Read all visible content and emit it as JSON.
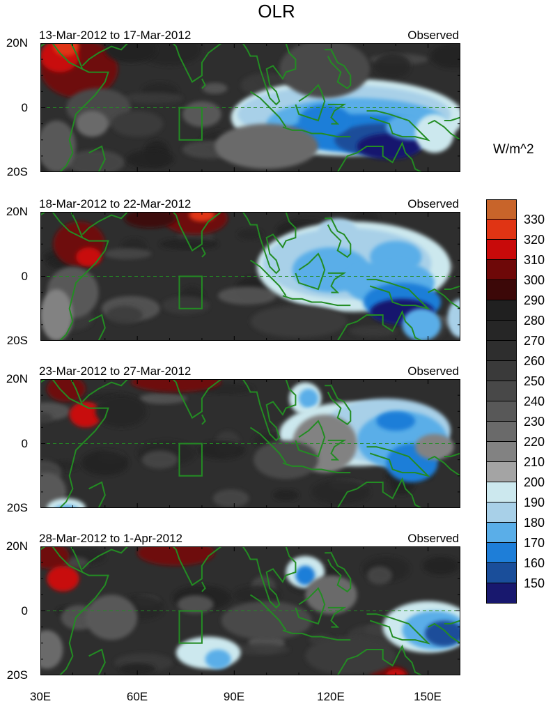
{
  "title": "OLR",
  "panels": [
    {
      "range": "13-Mar-2012 to 17-Mar-2012",
      "source": "Observed"
    },
    {
      "range": "18-Mar-2012 to 22-Mar-2012",
      "source": "Observed"
    },
    {
      "range": "23-Mar-2012 to 27-Mar-2012",
      "source": "Observed"
    },
    {
      "range": "28-Mar-2012 to 1-Apr-2012",
      "source": "Observed"
    }
  ],
  "y_ticks": [
    "20N",
    "0",
    "20S"
  ],
  "x_ticks": [
    "30E",
    "60E",
    "90E",
    "120E",
    "150E"
  ],
  "colorbar": {
    "units": "W/m^2",
    "labels": [
      "330",
      "320",
      "310",
      "300",
      "290",
      "280",
      "270",
      "260",
      "250",
      "240",
      "230",
      "220",
      "210",
      "200",
      "190",
      "180",
      "170",
      "160",
      "150"
    ],
    "colors": [
      "#c8642a",
      "#e03414",
      "#c80a0a",
      "#6e0808",
      "#3c0808",
      "#202020",
      "#262626",
      "#2e2e2e",
      "#3a3a3a",
      "#484848",
      "#585858",
      "#6a6a6a",
      "#828282",
      "#a4a4a4",
      "#cce8ee",
      "#a8d0e8",
      "#5aaee8",
      "#1e7ed8",
      "#1a4e9a",
      "#18186e"
    ]
  },
  "map_style": {
    "coast_color": "#238c23",
    "box_color": "#238c23"
  }
}
